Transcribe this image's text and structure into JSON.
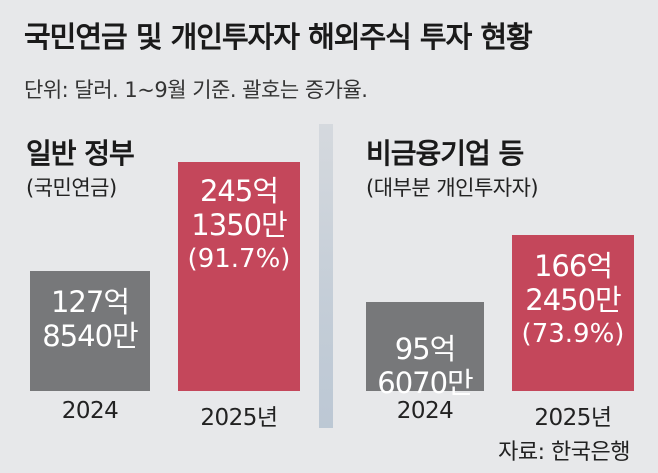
{
  "title": "국민연금 및 개인투자자 해외주식 투자 현황",
  "subtitle": "단위: 달러. 1~9월 기준. 괄호는 증가율.",
  "source": "자료: 한국은행",
  "colors": {
    "bar_2024": "#77787a",
    "bar_2025": "#c4475b",
    "background": "#e7e8ea"
  },
  "chart_data": [
    {
      "type": "bar",
      "title": "일반 정부",
      "subtitle": "(국민연금)",
      "categories": [
        "2024",
        "2025년"
      ],
      "values": [
        12785400000,
        24513500000
      ],
      "value_labels": [
        {
          "line1": "127억",
          "line2": "8540만"
        },
        {
          "line1": "245억",
          "line2": "1350만",
          "line3": "(91.7%)"
        }
      ],
      "growth_rate_pct": 91.7,
      "ylim": [
        0,
        28000000000
      ]
    },
    {
      "type": "bar",
      "title": "비금융기업 등",
      "subtitle": "(대부분 개인투자자)",
      "categories": [
        "2024",
        "2025년"
      ],
      "values": [
        9560700000,
        16624500000
      ],
      "value_labels": [
        {
          "line1": "95억",
          "line2": "6070만"
        },
        {
          "line1": "166억",
          "line2": "2450만",
          "line3": "(73.9%)"
        }
      ],
      "growth_rate_pct": 73.9,
      "ylim": [
        0,
        28000000000
      ]
    }
  ]
}
